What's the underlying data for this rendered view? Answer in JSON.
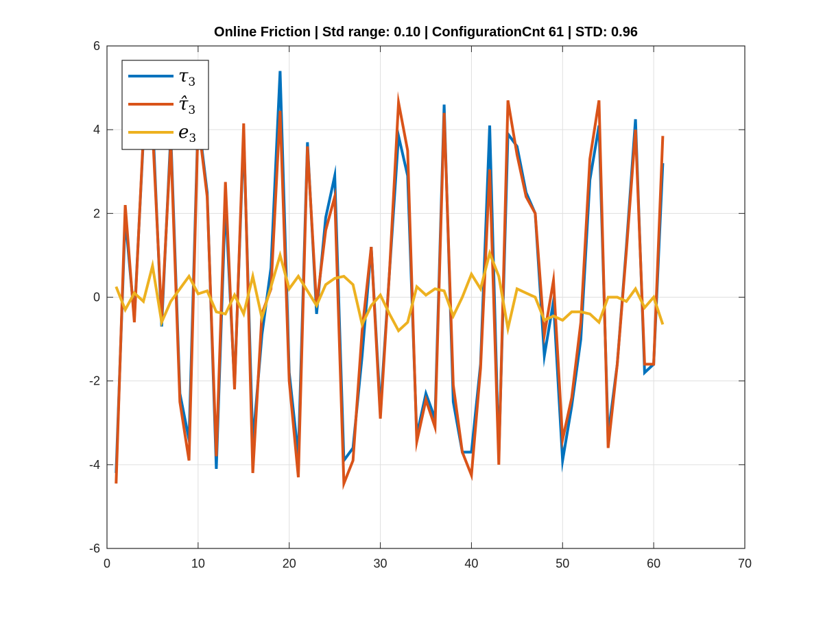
{
  "chart_data": {
    "type": "line",
    "title": "Online Friction | Std range: 0.10 | ConfigurationCnt 61 | STD: 0.96",
    "xlabel": "",
    "ylabel": "",
    "xlim": [
      0,
      70
    ],
    "ylim": [
      -6,
      6
    ],
    "xticks": [
      "0",
      "10",
      "20",
      "30",
      "40",
      "50",
      "60",
      "70"
    ],
    "yticks": [
      "-6",
      "-4",
      "-2",
      "0",
      "2",
      "4",
      "6"
    ],
    "grid": true,
    "legend_position": "top-left",
    "x": [
      1,
      2,
      3,
      4,
      5,
      6,
      7,
      8,
      9,
      10,
      11,
      12,
      13,
      14,
      15,
      16,
      17,
      18,
      19,
      20,
      21,
      22,
      23,
      24,
      25,
      26,
      27,
      28,
      29,
      30,
      31,
      32,
      33,
      34,
      35,
      36,
      37,
      38,
      39,
      40,
      41,
      42,
      43,
      44,
      45,
      46,
      47,
      48,
      49,
      50,
      51,
      52,
      53,
      54,
      55,
      56,
      57,
      58,
      59,
      60,
      61
    ],
    "series": [
      {
        "name": "τ3",
        "legend_main": "τ",
        "legend_sub": "3",
        "color": "#0072BD",
        "values": [
          -4.2,
          1.9,
          -0.5,
          3.8,
          4.3,
          -0.7,
          3.9,
          -2.3,
          -3.4,
          4.3,
          2.5,
          -4.1,
          2.3,
          -2.1,
          3.9,
          -3.5,
          -0.9,
          0.7,
          5.4,
          -1.8,
          -3.8,
          3.7,
          -0.4,
          1.9,
          2.9,
          -3.9,
          -3.6,
          -1.4,
          1.2,
          -2.7,
          0.6,
          3.85,
          2.9,
          -3.3,
          -2.3,
          -2.9,
          4.6,
          -2.5,
          -3.7,
          -3.7,
          -1.6,
          4.1,
          -3.8,
          3.9,
          3.6,
          2.5,
          2.0,
          -1.4,
          -0.1,
          -3.9,
          -2.6,
          -1.0,
          2.8,
          4.1,
          -3.3,
          -1.6,
          1.2,
          4.25,
          -1.8,
          -1.6,
          3.2
        ]
      },
      {
        "name": "τ̂3",
        "legend_main": "τ̂",
        "legend_sub": "3",
        "color": "#D95319",
        "values": [
          -4.45,
          2.2,
          -0.6,
          3.9,
          4.0,
          -0.5,
          3.7,
          -2.5,
          -3.9,
          4.2,
          2.4,
          -3.8,
          2.75,
          -2.2,
          4.15,
          -4.2,
          -0.4,
          0.2,
          4.45,
          -2.0,
          -4.3,
          3.6,
          -0.2,
          1.6,
          2.4,
          -4.45,
          -3.9,
          -0.8,
          1.2,
          -2.9,
          0.6,
          4.65,
          3.5,
          -3.45,
          -2.45,
          -3.1,
          4.4,
          -2.1,
          -3.7,
          -4.25,
          -1.7,
          3.05,
          -4.0,
          4.7,
          3.4,
          2.4,
          2.0,
          -0.9,
          0.4,
          -3.4,
          -2.4,
          -0.6,
          3.3,
          4.7,
          -3.6,
          -1.6,
          1.1,
          4.0,
          -1.6,
          -1.6,
          3.85
        ]
      },
      {
        "name": "e3",
        "legend_main": "e",
        "legend_sub": "3",
        "color": "#EDB120",
        "values": [
          0.25,
          -0.3,
          0.1,
          -0.1,
          0.75,
          -0.6,
          -0.1,
          0.2,
          0.5,
          0.08,
          0.15,
          -0.35,
          -0.4,
          0.05,
          -0.4,
          0.5,
          -0.5,
          0.25,
          1.0,
          0.2,
          0.5,
          0.15,
          -0.2,
          0.3,
          0.45,
          0.5,
          0.3,
          -0.65,
          -0.2,
          0.05,
          -0.4,
          -0.8,
          -0.6,
          0.25,
          0.05,
          0.2,
          0.15,
          -0.45,
          0.0,
          0.55,
          0.2,
          1.05,
          0.5,
          -0.75,
          0.2,
          0.1,
          0.0,
          -0.55,
          -0.45,
          -0.55,
          -0.35,
          -0.35,
          -0.4,
          -0.6,
          0.0,
          0.0,
          -0.1,
          0.2,
          -0.25,
          0.0,
          -0.65
        ]
      }
    ]
  }
}
